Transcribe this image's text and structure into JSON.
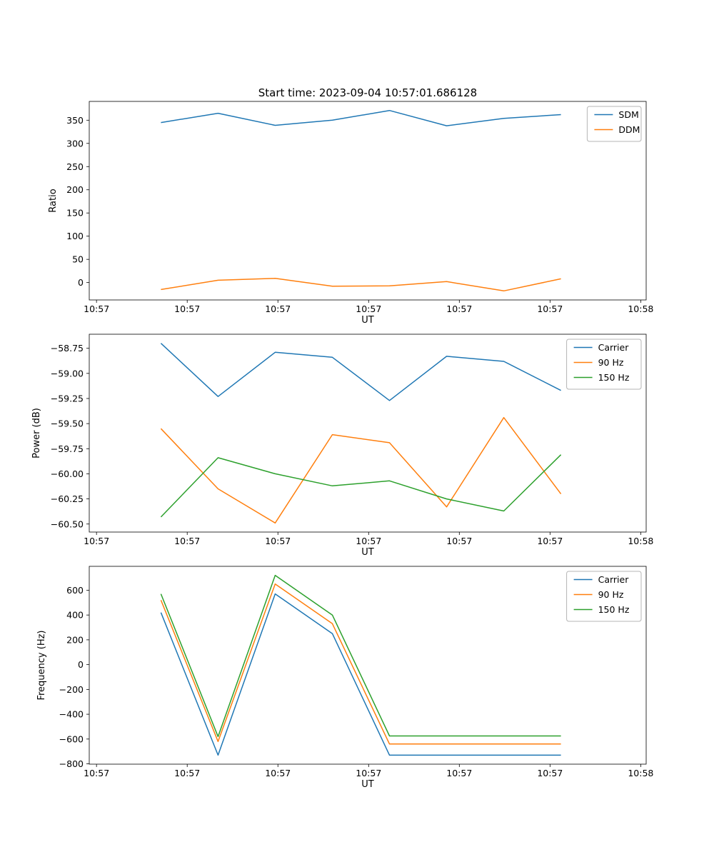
{
  "figure": {
    "title": "Start time: 2023-09-04 10:57:01.686128",
    "background": "#ffffff"
  },
  "chart_data": [
    {
      "type": "line",
      "name": "ratio-plot",
      "xlabel": "UT",
      "ylabel": "Ratio",
      "x_tick_labels": [
        "10:57",
        "10:57",
        "10:57",
        "10:57",
        "10:57",
        "10:57",
        "10:58"
      ],
      "x_tick_seconds": [
        0,
        10,
        20,
        30,
        40,
        50,
        60
      ],
      "xlim_seconds": [
        -0.8,
        60.6
      ],
      "x_seconds": [
        7.1,
        13.4,
        19.7,
        26.0,
        32.3,
        38.6,
        44.9,
        51.2
      ],
      "ylim": [
        -37.5,
        390.5
      ],
      "yticks": [
        0,
        50,
        100,
        150,
        200,
        250,
        300,
        350
      ],
      "ytick_labels": [
        "0",
        "50",
        "100",
        "150",
        "200",
        "250",
        "300",
        "350"
      ],
      "grid": false,
      "legend_position": "upper right",
      "series": [
        {
          "name": "SDM",
          "color": "#1f77b4",
          "values": [
            345,
            365,
            339,
            350,
            371,
            338,
            354,
            362
          ]
        },
        {
          "name": "DDM",
          "color": "#ff7f0e",
          "values": [
            -15,
            5,
            9,
            -8,
            -7,
            2,
            -18,
            8
          ]
        }
      ]
    },
    {
      "type": "line",
      "name": "power-plot",
      "xlabel": "UT",
      "ylabel": "Power (dB)",
      "x_tick_labels": [
        "10:57",
        "10:57",
        "10:57",
        "10:57",
        "10:57",
        "10:57",
        "10:58"
      ],
      "x_tick_seconds": [
        0,
        10,
        20,
        30,
        40,
        50,
        60
      ],
      "xlim_seconds": [
        -0.8,
        60.6
      ],
      "x_seconds": [
        7.1,
        13.4,
        19.7,
        26.0,
        32.3,
        38.6,
        44.9,
        51.2
      ],
      "ylim": [
        -60.58,
        -58.61
      ],
      "yticks": [
        -60.5,
        -60.25,
        -60.0,
        -59.75,
        -59.5,
        -59.25,
        -59.0,
        -58.75
      ],
      "ytick_labels": [
        "−60.50",
        "−60.25",
        "−60.00",
        "−59.75",
        "−59.50",
        "−59.25",
        "−59.00",
        "−58.75"
      ],
      "grid": false,
      "legend_position": "upper right",
      "series": [
        {
          "name": "Carrier",
          "color": "#1f77b4",
          "values": [
            -58.7,
            -59.23,
            -58.79,
            -58.84,
            -59.27,
            -58.83,
            -58.88,
            -59.17
          ]
        },
        {
          "name": "90 Hz",
          "color": "#ff7f0e",
          "values": [
            -59.55,
            -60.15,
            -60.49,
            -59.61,
            -59.69,
            -60.33,
            -59.44,
            -60.2
          ]
        },
        {
          "name": "150 Hz",
          "color": "#2ca02c",
          "values": [
            -60.43,
            -59.84,
            -60.0,
            -60.12,
            -60.07,
            -60.25,
            -60.37,
            -59.81
          ]
        }
      ]
    },
    {
      "type": "line",
      "name": "frequency-plot",
      "xlabel": "UT",
      "ylabel": "Frequency (Hz)",
      "x_tick_labels": [
        "10:57",
        "10:57",
        "10:57",
        "10:57",
        "10:57",
        "10:57",
        "10:58"
      ],
      "x_tick_seconds": [
        0,
        10,
        20,
        30,
        40,
        50,
        60
      ],
      "xlim_seconds": [
        -0.8,
        60.6
      ],
      "x_seconds": [
        7.1,
        13.4,
        19.7,
        26.0,
        32.3,
        38.6,
        44.9,
        51.2
      ],
      "ylim": [
        -802.5,
        792.5
      ],
      "yticks": [
        -800,
        -600,
        -400,
        -200,
        0,
        200,
        400,
        600
      ],
      "ytick_labels": [
        "−800",
        "−600",
        "−400",
        "−200",
        "0",
        "200",
        "400",
        "600"
      ],
      "grid": false,
      "legend_position": "upper right",
      "series": [
        {
          "name": "Carrier",
          "color": "#1f77b4",
          "values": [
            420,
            -730,
            570,
            250,
            -730,
            -730,
            -730,
            -730
          ]
        },
        {
          "name": "90 Hz",
          "color": "#ff7f0e",
          "values": [
            520,
            -620,
            650,
            330,
            -640,
            -640,
            -640,
            -640
          ]
        },
        {
          "name": "150 Hz",
          "color": "#2ca02c",
          "values": [
            570,
            -580,
            720,
            400,
            -575,
            -575,
            -575,
            -575
          ]
        }
      ]
    }
  ]
}
